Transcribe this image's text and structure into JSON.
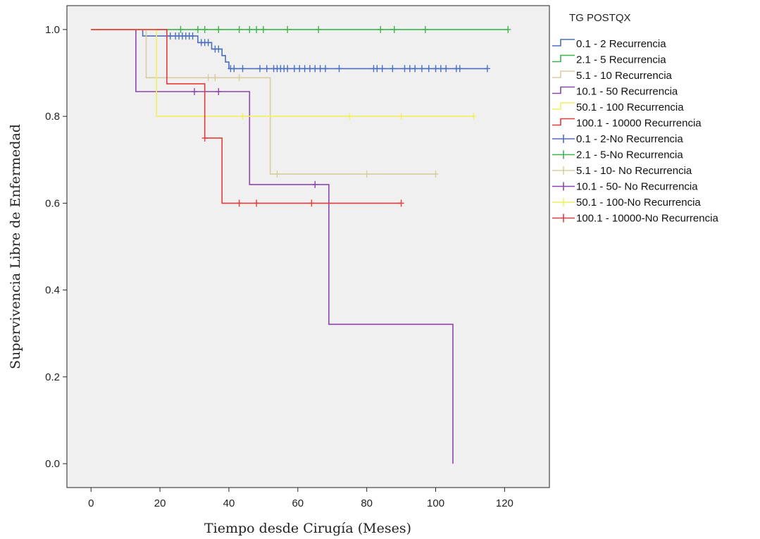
{
  "chart_data": {
    "type": "line",
    "title": "",
    "xlabel": "Tiempo desde Cirugía (Meses)",
    "ylabel": "Supervivencia Libre de Enfermedad",
    "xlim": [
      -7,
      133
    ],
    "ylim": [
      -0.055,
      1.055
    ],
    "xticks": [
      0,
      20,
      40,
      60,
      80,
      100,
      120
    ],
    "yticks": [
      0.0,
      0.2,
      0.4,
      0.6,
      0.8,
      1.0
    ],
    "xtick_labels": [
      "0",
      "20",
      "40",
      "60",
      "80",
      "100",
      "120"
    ],
    "ytick_labels": [
      "0.0",
      "0.2",
      "0.4",
      "0.6",
      "0.8",
      "1.0"
    ],
    "grid": false,
    "plot_background": "#f0f0f0",
    "legend_position": "right",
    "legend_title": "TG POSTQX",
    "legend": [
      {
        "label": "0.1 - 2 Recurrencia",
        "kind": "step",
        "color": "#4a6fbf"
      },
      {
        "label": "2.1 - 5 Recurrencia",
        "kind": "step",
        "color": "#3cb44b"
      },
      {
        "label": "5.1 - 10 Recurrencia",
        "kind": "step",
        "color": "#d8cda0"
      },
      {
        "label": "10.1 - 50 Recurrencia",
        "kind": "step",
        "color": "#8e44ad"
      },
      {
        "label": "50.1 - 100 Recurrencia",
        "kind": "step",
        "color": "#f1f15e"
      },
      {
        "label": "100.1 - 10000 Recurrencia",
        "kind": "step",
        "color": "#e83a3a"
      },
      {
        "label": "0.1 - 2-No Recurrencia",
        "kind": "cross",
        "color": "#4a6fbf"
      },
      {
        "label": "2.1 - 5-No Recurrencia",
        "kind": "cross",
        "color": "#3cb44b"
      },
      {
        "label": "5.1 - 10- No Recurrencia",
        "kind": "cross",
        "color": "#d8cda0"
      },
      {
        "label": "10.1 - 50- No Recurrencia",
        "kind": "cross",
        "color": "#8e44ad"
      },
      {
        "label": "50.1 - 100-No Recurrencia",
        "kind": "cross",
        "color": "#f1f15e"
      },
      {
        "label": "100.1 - 10000-No Recurrencia",
        "kind": "cross",
        "color": "#e83a3a"
      }
    ],
    "series": [
      {
        "color": "#4a6fbf",
        "steps": [
          [
            0,
            1.0
          ],
          [
            15,
            1.0
          ],
          [
            15,
            0.985
          ],
          [
            31,
            0.985
          ],
          [
            31,
            0.97
          ],
          [
            35,
            0.97
          ],
          [
            35,
            0.955
          ],
          [
            38,
            0.955
          ],
          [
            38,
            0.94
          ],
          [
            39,
            0.94
          ],
          [
            39,
            0.925
          ],
          [
            40,
            0.925
          ],
          [
            40,
            0.91
          ],
          [
            115,
            0.91
          ]
        ],
        "censored": [
          [
            23,
            0.985
          ],
          [
            24.5,
            0.985
          ],
          [
            25.5,
            0.985
          ],
          [
            26.5,
            0.985
          ],
          [
            27.5,
            0.985
          ],
          [
            28.5,
            0.985
          ],
          [
            29.5,
            0.985
          ],
          [
            32,
            0.97
          ],
          [
            33,
            0.97
          ],
          [
            34,
            0.97
          ],
          [
            36,
            0.955
          ],
          [
            37,
            0.955
          ],
          [
            40.5,
            0.91
          ],
          [
            41.5,
            0.91
          ],
          [
            44,
            0.91
          ],
          [
            49,
            0.91
          ],
          [
            51,
            0.91
          ],
          [
            53,
            0.91
          ],
          [
            54,
            0.91
          ],
          [
            55,
            0.91
          ],
          [
            56,
            0.91
          ],
          [
            57,
            0.91
          ],
          [
            59,
            0.91
          ],
          [
            60.5,
            0.91
          ],
          [
            62,
            0.91
          ],
          [
            63.5,
            0.91
          ],
          [
            65,
            0.91
          ],
          [
            66.5,
            0.91
          ],
          [
            68,
            0.91
          ],
          [
            72,
            0.91
          ],
          [
            82,
            0.91
          ],
          [
            83,
            0.91
          ],
          [
            84.5,
            0.91
          ],
          [
            87.5,
            0.91
          ],
          [
            91,
            0.91
          ],
          [
            92.5,
            0.91
          ],
          [
            94,
            0.91
          ],
          [
            96,
            0.91
          ],
          [
            98,
            0.91
          ],
          [
            100,
            0.91
          ],
          [
            101.5,
            0.91
          ],
          [
            103,
            0.91
          ],
          [
            106,
            0.91
          ],
          [
            107,
            0.91
          ],
          [
            115,
            0.91
          ]
        ]
      },
      {
        "color": "#3cb44b",
        "steps": [
          [
            0,
            1.0
          ],
          [
            121,
            1.0
          ]
        ],
        "censored": [
          [
            26,
            1.0
          ],
          [
            31,
            1.0
          ],
          [
            33,
            1.0
          ],
          [
            37,
            1.0
          ],
          [
            43,
            1.0
          ],
          [
            46,
            1.0
          ],
          [
            48,
            1.0
          ],
          [
            50,
            1.0
          ],
          [
            57,
            1.0
          ],
          [
            66,
            1.0
          ],
          [
            84,
            1.0
          ],
          [
            88,
            1.0
          ],
          [
            97,
            1.0
          ],
          [
            121,
            1.0
          ]
        ]
      },
      {
        "color": "#d8cda0",
        "steps": [
          [
            0,
            1.0
          ],
          [
            16,
            1.0
          ],
          [
            16,
            0.889
          ],
          [
            52,
            0.889
          ],
          [
            52,
            0.667
          ],
          [
            100,
            0.667
          ]
        ],
        "censored": [
          [
            34,
            0.889
          ],
          [
            36,
            0.889
          ],
          [
            43,
            0.889
          ],
          [
            54,
            0.667
          ],
          [
            80,
            0.667
          ],
          [
            100,
            0.667
          ]
        ]
      },
      {
        "color": "#8e44ad",
        "steps": [
          [
            0,
            1.0
          ],
          [
            13,
            1.0
          ],
          [
            13,
            0.857
          ],
          [
            46,
            0.857
          ],
          [
            46,
            0.643
          ],
          [
            69,
            0.643
          ],
          [
            69,
            0.321
          ],
          [
            105,
            0.321
          ],
          [
            105,
            0.0
          ]
        ],
        "censored": [
          [
            30,
            0.857
          ],
          [
            37,
            0.857
          ],
          [
            65,
            0.643
          ]
        ]
      },
      {
        "color": "#f1f15e",
        "steps": [
          [
            0,
            1.0
          ],
          [
            19,
            1.0
          ],
          [
            19,
            0.8
          ],
          [
            111,
            0.8
          ]
        ],
        "censored": [
          [
            44,
            0.8
          ],
          [
            75,
            0.8
          ],
          [
            90,
            0.8
          ],
          [
            111,
            0.8
          ]
        ]
      },
      {
        "color": "#e83a3a",
        "steps": [
          [
            0,
            1.0
          ],
          [
            22,
            1.0
          ],
          [
            22,
            0.875
          ],
          [
            33,
            0.875
          ],
          [
            33,
            0.75
          ],
          [
            38,
            0.75
          ],
          [
            38,
            0.6
          ],
          [
            90,
            0.6
          ]
        ],
        "censored": [
          [
            33,
            0.75
          ],
          [
            43,
            0.6
          ],
          [
            48,
            0.6
          ],
          [
            64,
            0.6
          ],
          [
            90,
            0.6
          ]
        ]
      }
    ]
  }
}
